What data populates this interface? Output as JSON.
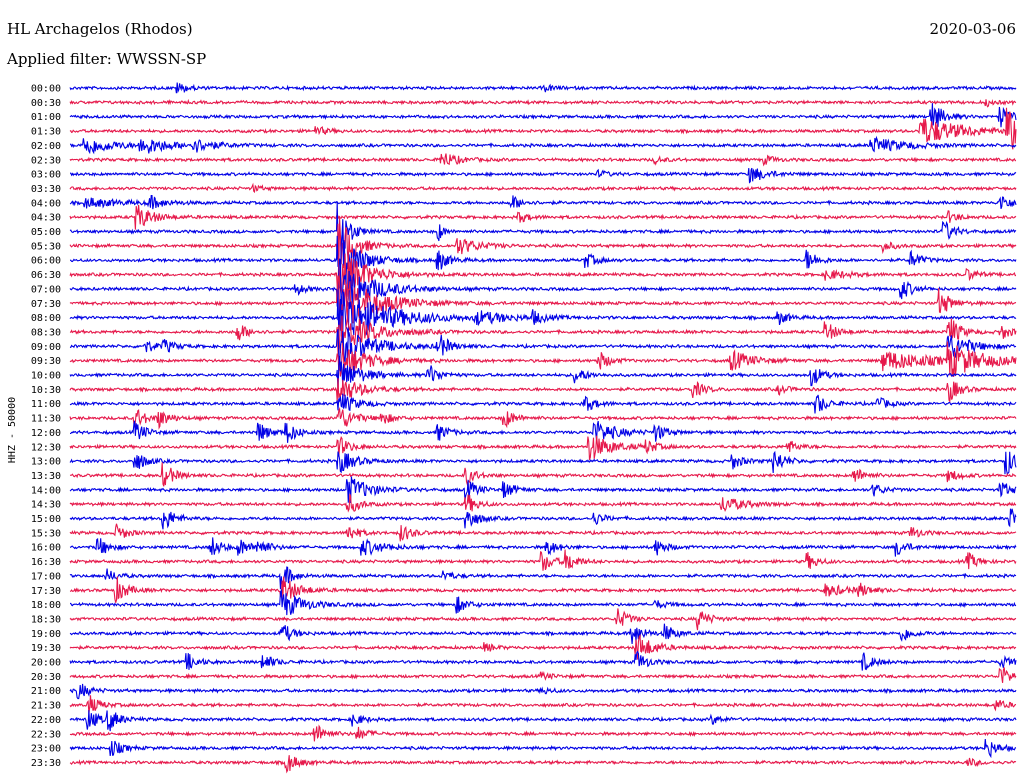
{
  "header": {
    "station": "HL Archagelos (Rhodos)",
    "filter": "Applied filter: WWSSN-SP",
    "date": "2020-03-06"
  },
  "chart_data": {
    "type": "line",
    "title": "HL Archagelos (Rhodos)",
    "subtitle": "Applied filter: WWSSN-SP",
    "ylabel": "HHZ - 50000",
    "trace_colors": [
      "#0000e6",
      "#e6194b"
    ],
    "rows": [
      {
        "label": "00:00",
        "events": [
          {
            "t": 0.115,
            "a": 5,
            "d": 0.01
          },
          {
            "t": 0.503,
            "a": 3,
            "d": 0.01
          }
        ]
      },
      {
        "label": "00:30",
        "events": [
          {
            "t": 0.97,
            "a": 3,
            "d": 0.008
          }
        ]
      },
      {
        "label": "01:00",
        "events": [
          {
            "t": 0.912,
            "a": 14,
            "d": 0.012
          },
          {
            "t": 0.984,
            "a": 10,
            "d": 0.012
          }
        ]
      },
      {
        "label": "01:30",
        "events": [
          {
            "t": 0.262,
            "a": 4,
            "d": 0.01
          },
          {
            "t": 0.9,
            "a": 14,
            "d": 0.04
          },
          {
            "t": 0.992,
            "a": 22,
            "d": 0.02
          }
        ]
      },
      {
        "label": "02:00",
        "events": [
          {
            "t": 0.016,
            "a": 10,
            "d": 0.025
          },
          {
            "t": 0.076,
            "a": 9,
            "d": 0.025
          },
          {
            "t": 0.132,
            "a": 6,
            "d": 0.02
          },
          {
            "t": 0.848,
            "a": 8,
            "d": 0.03
          }
        ]
      },
      {
        "label": "02:30",
        "events": [
          {
            "t": 0.393,
            "a": 8,
            "d": 0.015
          },
          {
            "t": 0.62,
            "a": 3,
            "d": 0.01
          },
          {
            "t": 0.735,
            "a": 4,
            "d": 0.01
          }
        ]
      },
      {
        "label": "03:00",
        "events": [
          {
            "t": 0.72,
            "a": 8,
            "d": 0.015
          },
          {
            "t": 0.56,
            "a": 3,
            "d": 0.01
          }
        ]
      },
      {
        "label": "03:30",
        "events": [
          {
            "t": 0.195,
            "a": 3,
            "d": 0.008
          }
        ]
      },
      {
        "label": "04:00",
        "events": [
          {
            "t": 0.018,
            "a": 5,
            "d": 0.03
          },
          {
            "t": 0.085,
            "a": 6,
            "d": 0.015
          },
          {
            "t": 0.468,
            "a": 7,
            "d": 0.01
          },
          {
            "t": 0.985,
            "a": 8,
            "d": 0.01
          }
        ]
      },
      {
        "label": "04:30",
        "events": [
          {
            "t": 0.072,
            "a": 12,
            "d": 0.015
          },
          {
            "t": 0.475,
            "a": 5,
            "d": 0.01
          },
          {
            "t": 0.93,
            "a": 5,
            "d": 0.01
          }
        ]
      },
      {
        "label": "05:00",
        "events": [
          {
            "t": 0.285,
            "a": 30,
            "d": 0.01
          },
          {
            "t": 0.39,
            "a": 9,
            "d": 0.005
          },
          {
            "t": 0.925,
            "a": 10,
            "d": 0.01
          }
        ]
      },
      {
        "label": "05:30",
        "events": [
          {
            "t": 0.285,
            "a": 30,
            "d": 0.015
          },
          {
            "t": 0.41,
            "a": 9,
            "d": 0.02
          },
          {
            "t": 0.86,
            "a": 5,
            "d": 0.01
          }
        ]
      },
      {
        "label": "06:00",
        "events": [
          {
            "t": 0.285,
            "a": 30,
            "d": 0.02
          },
          {
            "t": 0.39,
            "a": 10,
            "d": 0.01
          },
          {
            "t": 0.545,
            "a": 8,
            "d": 0.01
          },
          {
            "t": 0.78,
            "a": 10,
            "d": 0.01
          },
          {
            "t": 0.89,
            "a": 8,
            "d": 0.01
          }
        ]
      },
      {
        "label": "06:30",
        "events": [
          {
            "t": 0.285,
            "a": 30,
            "d": 0.025
          },
          {
            "t": 0.8,
            "a": 5,
            "d": 0.02
          },
          {
            "t": 0.95,
            "a": 5,
            "d": 0.01
          }
        ]
      },
      {
        "label": "07:00",
        "events": [
          {
            "t": 0.285,
            "a": 30,
            "d": 0.03
          },
          {
            "t": 0.24,
            "a": 5,
            "d": 0.01
          },
          {
            "t": 0.88,
            "a": 10,
            "d": 0.01
          }
        ]
      },
      {
        "label": "07:30",
        "events": [
          {
            "t": 0.285,
            "a": 30,
            "d": 0.035
          },
          {
            "t": 0.92,
            "a": 14,
            "d": 0.01
          }
        ]
      },
      {
        "label": "08:00",
        "events": [
          {
            "t": 0.285,
            "a": 30,
            "d": 0.045
          },
          {
            "t": 0.43,
            "a": 6,
            "d": 0.03
          },
          {
            "t": 0.49,
            "a": 6,
            "d": 0.01
          },
          {
            "t": 0.75,
            "a": 6,
            "d": 0.01
          }
        ]
      },
      {
        "label": "08:30",
        "events": [
          {
            "t": 0.178,
            "a": 9,
            "d": 0.01
          },
          {
            "t": 0.285,
            "a": 22,
            "d": 0.03
          },
          {
            "t": 0.8,
            "a": 10,
            "d": 0.01
          },
          {
            "t": 0.93,
            "a": 16,
            "d": 0.01
          },
          {
            "t": 0.985,
            "a": 7,
            "d": 0.01
          }
        ]
      },
      {
        "label": "09:00",
        "events": [
          {
            "t": 0.08,
            "a": 6,
            "d": 0.01
          },
          {
            "t": 0.1,
            "a": 6,
            "d": 0.01
          },
          {
            "t": 0.285,
            "a": 22,
            "d": 0.03
          },
          {
            "t": 0.39,
            "a": 12,
            "d": 0.01
          },
          {
            "t": 0.93,
            "a": 14,
            "d": 0.02
          }
        ]
      },
      {
        "label": "09:30",
        "events": [
          {
            "t": 0.285,
            "a": 20,
            "d": 0.025
          },
          {
            "t": 0.56,
            "a": 9,
            "d": 0.01
          },
          {
            "t": 0.7,
            "a": 10,
            "d": 0.02
          },
          {
            "t": 0.86,
            "a": 10,
            "d": 0.05
          },
          {
            "t": 0.93,
            "a": 16,
            "d": 0.03
          }
        ]
      },
      {
        "label": "10:00",
        "events": [
          {
            "t": 0.285,
            "a": 18,
            "d": 0.02
          },
          {
            "t": 0.38,
            "a": 10,
            "d": 0.01
          },
          {
            "t": 0.535,
            "a": 8,
            "d": 0.01
          },
          {
            "t": 0.785,
            "a": 10,
            "d": 0.01
          }
        ]
      },
      {
        "label": "10:30",
        "events": [
          {
            "t": 0.285,
            "a": 14,
            "d": 0.02
          },
          {
            "t": 0.66,
            "a": 8,
            "d": 0.01
          },
          {
            "t": 0.75,
            "a": 4,
            "d": 0.01
          },
          {
            "t": 0.93,
            "a": 12,
            "d": 0.01
          }
        ]
      },
      {
        "label": "11:00",
        "events": [
          {
            "t": 0.285,
            "a": 12,
            "d": 0.015
          },
          {
            "t": 0.545,
            "a": 8,
            "d": 0.01
          },
          {
            "t": 0.79,
            "a": 10,
            "d": 0.01
          },
          {
            "t": 0.855,
            "a": 6,
            "d": 0.01
          }
        ]
      },
      {
        "label": "11:30",
        "events": [
          {
            "t": 0.07,
            "a": 10,
            "d": 0.01
          },
          {
            "t": 0.095,
            "a": 8,
            "d": 0.01
          },
          {
            "t": 0.285,
            "a": 12,
            "d": 0.015
          },
          {
            "t": 0.33,
            "a": 6,
            "d": 0.01
          },
          {
            "t": 0.46,
            "a": 9,
            "d": 0.01
          }
        ]
      },
      {
        "label": "12:00",
        "events": [
          {
            "t": 0.07,
            "a": 10,
            "d": 0.01
          },
          {
            "t": 0.2,
            "a": 10,
            "d": 0.01
          },
          {
            "t": 0.23,
            "a": 10,
            "d": 0.01
          },
          {
            "t": 0.39,
            "a": 8,
            "d": 0.01
          },
          {
            "t": 0.555,
            "a": 12,
            "d": 0.02
          },
          {
            "t": 0.62,
            "a": 8,
            "d": 0.01
          }
        ]
      },
      {
        "label": "12:30",
        "events": [
          {
            "t": 0.285,
            "a": 10,
            "d": 0.01
          },
          {
            "t": 0.55,
            "a": 14,
            "d": 0.02
          },
          {
            "t": 0.61,
            "a": 6,
            "d": 0.01
          },
          {
            "t": 0.76,
            "a": 6,
            "d": 0.01
          }
        ]
      },
      {
        "label": "13:00",
        "events": [
          {
            "t": 0.07,
            "a": 10,
            "d": 0.01
          },
          {
            "t": 0.285,
            "a": 12,
            "d": 0.015
          },
          {
            "t": 0.7,
            "a": 8,
            "d": 0.01
          },
          {
            "t": 0.745,
            "a": 12,
            "d": 0.01
          },
          {
            "t": 0.99,
            "a": 14,
            "d": 0.01
          }
        ]
      },
      {
        "label": "13:30",
        "events": [
          {
            "t": 0.1,
            "a": 12,
            "d": 0.01
          },
          {
            "t": 0.42,
            "a": 8,
            "d": 0.01
          },
          {
            "t": 0.83,
            "a": 8,
            "d": 0.01
          },
          {
            "t": 0.93,
            "a": 6,
            "d": 0.01
          }
        ]
      },
      {
        "label": "14:00",
        "events": [
          {
            "t": 0.295,
            "a": 14,
            "d": 0.02
          },
          {
            "t": 0.42,
            "a": 10,
            "d": 0.01
          },
          {
            "t": 0.46,
            "a": 8,
            "d": 0.01
          },
          {
            "t": 0.85,
            "a": 6,
            "d": 0.01
          },
          {
            "t": 0.985,
            "a": 8,
            "d": 0.01
          }
        ]
      },
      {
        "label": "14:30",
        "events": [
          {
            "t": 0.295,
            "a": 10,
            "d": 0.01
          },
          {
            "t": 0.42,
            "a": 10,
            "d": 0.01
          },
          {
            "t": 0.69,
            "a": 8,
            "d": 0.02
          }
        ]
      },
      {
        "label": "15:00",
        "events": [
          {
            "t": 0.1,
            "a": 12,
            "d": 0.01
          },
          {
            "t": 0.42,
            "a": 12,
            "d": 0.01
          },
          {
            "t": 0.555,
            "a": 6,
            "d": 0.01
          },
          {
            "t": 0.995,
            "a": 10,
            "d": 0.01
          }
        ]
      },
      {
        "label": "15:30",
        "events": [
          {
            "t": 0.05,
            "a": 8,
            "d": 0.01
          },
          {
            "t": 0.295,
            "a": 8,
            "d": 0.01
          },
          {
            "t": 0.352,
            "a": 8,
            "d": 0.01
          },
          {
            "t": 0.89,
            "a": 6,
            "d": 0.01
          }
        ]
      },
      {
        "label": "16:00",
        "events": [
          {
            "t": 0.03,
            "a": 10,
            "d": 0.01
          },
          {
            "t": 0.15,
            "a": 10,
            "d": 0.01
          },
          {
            "t": 0.18,
            "a": 8,
            "d": 0.01
          },
          {
            "t": 0.2,
            "a": 8,
            "d": 0.01
          },
          {
            "t": 0.31,
            "a": 8,
            "d": 0.02
          },
          {
            "t": 0.505,
            "a": 8,
            "d": 0.01
          },
          {
            "t": 0.62,
            "a": 8,
            "d": 0.01
          },
          {
            "t": 0.875,
            "a": 8,
            "d": 0.01
          }
        ]
      },
      {
        "label": "16:30",
        "events": [
          {
            "t": 0.5,
            "a": 10,
            "d": 0.01
          },
          {
            "t": 0.525,
            "a": 10,
            "d": 0.01
          },
          {
            "t": 0.78,
            "a": 8,
            "d": 0.01
          },
          {
            "t": 0.95,
            "a": 8,
            "d": 0.01
          }
        ]
      },
      {
        "label": "17:00",
        "events": [
          {
            "t": 0.225,
            "a": 12,
            "d": 0.01
          },
          {
            "t": 0.04,
            "a": 6,
            "d": 0.01
          },
          {
            "t": 0.395,
            "a": 5,
            "d": 0.01
          }
        ]
      },
      {
        "label": "17:30",
        "events": [
          {
            "t": 0.05,
            "a": 12,
            "d": 0.01
          },
          {
            "t": 0.225,
            "a": 14,
            "d": 0.015
          },
          {
            "t": 0.8,
            "a": 6,
            "d": 0.02
          },
          {
            "t": 0.835,
            "a": 6,
            "d": 0.01
          }
        ]
      },
      {
        "label": "18:00",
        "events": [
          {
            "t": 0.225,
            "a": 14,
            "d": 0.02
          },
          {
            "t": 0.41,
            "a": 8,
            "d": 0.01
          },
          {
            "t": 0.62,
            "a": 4,
            "d": 0.01
          }
        ]
      },
      {
        "label": "18:30",
        "events": [
          {
            "t": 0.58,
            "a": 10,
            "d": 0.01
          },
          {
            "t": 0.665,
            "a": 10,
            "d": 0.01
          }
        ]
      },
      {
        "label": "19:00",
        "events": [
          {
            "t": 0.225,
            "a": 10,
            "d": 0.01
          },
          {
            "t": 0.595,
            "a": 12,
            "d": 0.01
          },
          {
            "t": 0.63,
            "a": 8,
            "d": 0.01
          },
          {
            "t": 0.88,
            "a": 8,
            "d": 0.01
          }
        ]
      },
      {
        "label": "19:30",
        "events": [
          {
            "t": 0.6,
            "a": 14,
            "d": 0.015
          },
          {
            "t": 0.44,
            "a": 4,
            "d": 0.01
          }
        ]
      },
      {
        "label": "20:00",
        "events": [
          {
            "t": 0.125,
            "a": 8,
            "d": 0.01
          },
          {
            "t": 0.205,
            "a": 8,
            "d": 0.01
          },
          {
            "t": 0.6,
            "a": 10,
            "d": 0.01
          },
          {
            "t": 0.84,
            "a": 8,
            "d": 0.01
          },
          {
            "t": 0.985,
            "a": 6,
            "d": 0.01
          }
        ]
      },
      {
        "label": "20:30",
        "events": [
          {
            "t": 0.985,
            "a": 10,
            "d": 0.01
          },
          {
            "t": 0.5,
            "a": 3,
            "d": 0.01
          }
        ]
      },
      {
        "label": "21:00",
        "events": [
          {
            "t": 0.01,
            "a": 8,
            "d": 0.01
          },
          {
            "t": 0.5,
            "a": 3,
            "d": 0.01
          }
        ]
      },
      {
        "label": "21:30",
        "events": [
          {
            "t": 0.02,
            "a": 10,
            "d": 0.01
          },
          {
            "t": 0.98,
            "a": 5,
            "d": 0.01
          }
        ]
      },
      {
        "label": "22:00",
        "events": [
          {
            "t": 0.02,
            "a": 10,
            "d": 0.01
          },
          {
            "t": 0.042,
            "a": 10,
            "d": 0.01
          },
          {
            "t": 0.3,
            "a": 6,
            "d": 0.01
          },
          {
            "t": 0.68,
            "a": 4,
            "d": 0.01
          }
        ]
      },
      {
        "label": "22:30",
        "events": [
          {
            "t": 0.26,
            "a": 10,
            "d": 0.01
          },
          {
            "t": 0.305,
            "a": 6,
            "d": 0.01
          }
        ]
      },
      {
        "label": "23:00",
        "events": [
          {
            "t": 0.045,
            "a": 8,
            "d": 0.01
          },
          {
            "t": 0.97,
            "a": 10,
            "d": 0.01
          }
        ]
      },
      {
        "label": "23:30",
        "events": [
          {
            "t": 0.23,
            "a": 10,
            "d": 0.01
          },
          {
            "t": 0.95,
            "a": 4,
            "d": 0.01
          }
        ]
      }
    ]
  }
}
